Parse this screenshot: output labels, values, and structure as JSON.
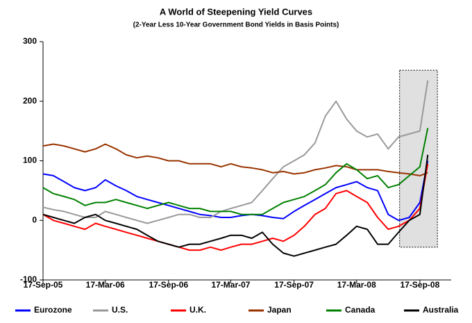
{
  "chart_data": {
    "type": "line",
    "title": "A World of Steepening Yield Curves",
    "subtitle": "(2-Year Less 10-Year Government Bond Yields in Basis Points)",
    "x": [
      "17-Sep-05",
      "17-Oct-05",
      "17-Nov-05",
      "17-Dec-05",
      "17-Jan-06",
      "17-Feb-06",
      "17-Mar-06",
      "17-Apr-06",
      "17-May-06",
      "17-Jun-06",
      "17-Jul-06",
      "17-Aug-06",
      "17-Sep-06",
      "17-Oct-06",
      "17-Nov-06",
      "17-Dec-06",
      "17-Jan-07",
      "17-Feb-07",
      "17-Mar-07",
      "17-Apr-07",
      "17-May-07",
      "17-Jun-07",
      "17-Jul-07",
      "17-Aug-07",
      "17-Sep-07",
      "17-Oct-07",
      "17-Nov-07",
      "17-Dec-07",
      "17-Jan-08",
      "17-Feb-08",
      "17-Mar-08",
      "17-Apr-08",
      "17-May-08",
      "17-Jun-08",
      "17-Jul-08",
      "17-Aug-08",
      "17-Sep-08",
      "10-Oct-08"
    ],
    "series": [
      {
        "name": "Eurozone",
        "color": "#0000ff",
        "values": [
          78,
          75,
          65,
          55,
          50,
          55,
          68,
          58,
          50,
          40,
          35,
          30,
          25,
          20,
          15,
          10,
          8,
          5,
          5,
          8,
          10,
          8,
          5,
          3,
          15,
          25,
          35,
          45,
          55,
          60,
          65,
          55,
          50,
          10,
          0,
          5,
          30,
          100
        ]
      },
      {
        "name": "U.S.",
        "color": "#999999",
        "values": [
          22,
          18,
          15,
          10,
          5,
          5,
          15,
          10,
          5,
          0,
          -5,
          0,
          5,
          10,
          10,
          5,
          5,
          15,
          20,
          25,
          30,
          50,
          70,
          90,
          100,
          110,
          130,
          175,
          200,
          170,
          150,
          140,
          145,
          120,
          140,
          145,
          150,
          235
        ]
      },
      {
        "name": "U.K.",
        "color": "#ff0000",
        "values": [
          10,
          0,
          -5,
          -10,
          -15,
          -5,
          -10,
          -15,
          -20,
          -25,
          -30,
          -35,
          -40,
          -45,
          -50,
          -50,
          -45,
          -50,
          -45,
          -40,
          -40,
          -35,
          -30,
          -35,
          -25,
          -10,
          10,
          20,
          45,
          50,
          40,
          30,
          5,
          -15,
          -10,
          0,
          20,
          95
        ]
      },
      {
        "name": "Japan",
        "color": "#993300",
        "values": [
          125,
          128,
          125,
          120,
          115,
          120,
          128,
          120,
          110,
          105,
          108,
          105,
          100,
          100,
          95,
          95,
          95,
          90,
          95,
          90,
          88,
          85,
          80,
          82,
          78,
          80,
          85,
          88,
          92,
          90,
          85,
          85,
          85,
          82,
          80,
          78,
          75,
          80
        ]
      },
      {
        "name": "Canada",
        "color": "#008000",
        "values": [
          55,
          45,
          40,
          35,
          25,
          30,
          30,
          35,
          30,
          25,
          20,
          25,
          30,
          25,
          20,
          20,
          15,
          15,
          15,
          10,
          10,
          10,
          20,
          30,
          35,
          40,
          50,
          60,
          80,
          95,
          85,
          70,
          75,
          55,
          60,
          75,
          90,
          155
        ]
      },
      {
        "name": "Australia",
        "color": "#000000",
        "values": [
          10,
          5,
          0,
          -5,
          5,
          10,
          0,
          -5,
          -10,
          -15,
          -25,
          -35,
          -40,
          -45,
          -40,
          -40,
          -35,
          -30,
          -25,
          -25,
          -30,
          -20,
          -40,
          -55,
          -60,
          -55,
          -50,
          -45,
          -40,
          -25,
          -10,
          -15,
          -40,
          -40,
          -20,
          0,
          10,
          110
        ]
      }
    ],
    "xlim": [
      "17-Sep-05",
      "17-Dec-08"
    ],
    "xticks": [
      "17-Sep-05",
      "17-Mar-06",
      "17-Sep-06",
      "17-Mar-07",
      "17-Sep-07",
      "17-Mar-08",
      "17-Sep-08"
    ],
    "ylim": [
      -100,
      300
    ],
    "yticks": [
      -100,
      0,
      100,
      200,
      300
    ],
    "highlight": {
      "x": [
        "20-Jul-08",
        "7-Nov-08"
      ],
      "y": [
        -45,
        252
      ],
      "color": "#e0e0e0"
    },
    "legend": "bottom"
  }
}
